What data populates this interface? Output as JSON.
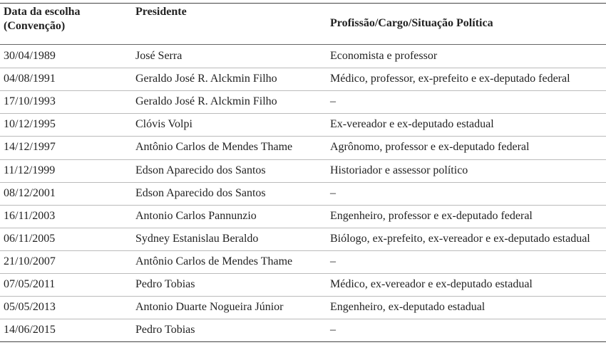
{
  "table": {
    "columns": [
      "Data da escolha (Convenção)",
      "Presidente",
      "Profissão/Cargo/Situação Política"
    ],
    "rows": [
      [
        "30/04/1989",
        "José Serra",
        "Economista e professor"
      ],
      [
        "04/08/1991",
        "Geraldo José R. Alckmin Filho",
        "Médico, professor, ex-prefeito e ex-deputado federal"
      ],
      [
        "17/10/1993",
        "Geraldo José R. Alckmin Filho",
        "–"
      ],
      [
        "10/12/1995",
        "Clóvis Volpi",
        "Ex-vereador e ex-deputado estadual"
      ],
      [
        "14/12/1997",
        "Antônio Carlos de Mendes Thame",
        "Agrônomo, professor e ex-deputado federal"
      ],
      [
        "11/12/1999",
        "Edson Aparecido dos Santos",
        "Historiador e assessor político"
      ],
      [
        "08/12/2001",
        "Edson Aparecido dos Santos",
        "–"
      ],
      [
        "16/11/2003",
        "Antonio Carlos Pannunzio",
        "Engenheiro, professor e ex-deputado federal"
      ],
      [
        "06/11/2005",
        "Sydney Estanislau Beraldo",
        "Biólogo, ex-prefeito, ex-vereador e ex-deputado estadual"
      ],
      [
        "21/10/2007",
        "Antônio Carlos de Mendes Thame",
        "–"
      ],
      [
        "07/05/2011",
        "Pedro Tobias",
        "Médico, ex-vereador e ex-deputado estadual"
      ],
      [
        "05/05/2013",
        "Antonio Duarte Nogueira Júnior",
        "Engenheiro, ex-deputado estadual"
      ],
      [
        "14/06/2015",
        "Pedro Tobias",
        "–"
      ]
    ]
  }
}
